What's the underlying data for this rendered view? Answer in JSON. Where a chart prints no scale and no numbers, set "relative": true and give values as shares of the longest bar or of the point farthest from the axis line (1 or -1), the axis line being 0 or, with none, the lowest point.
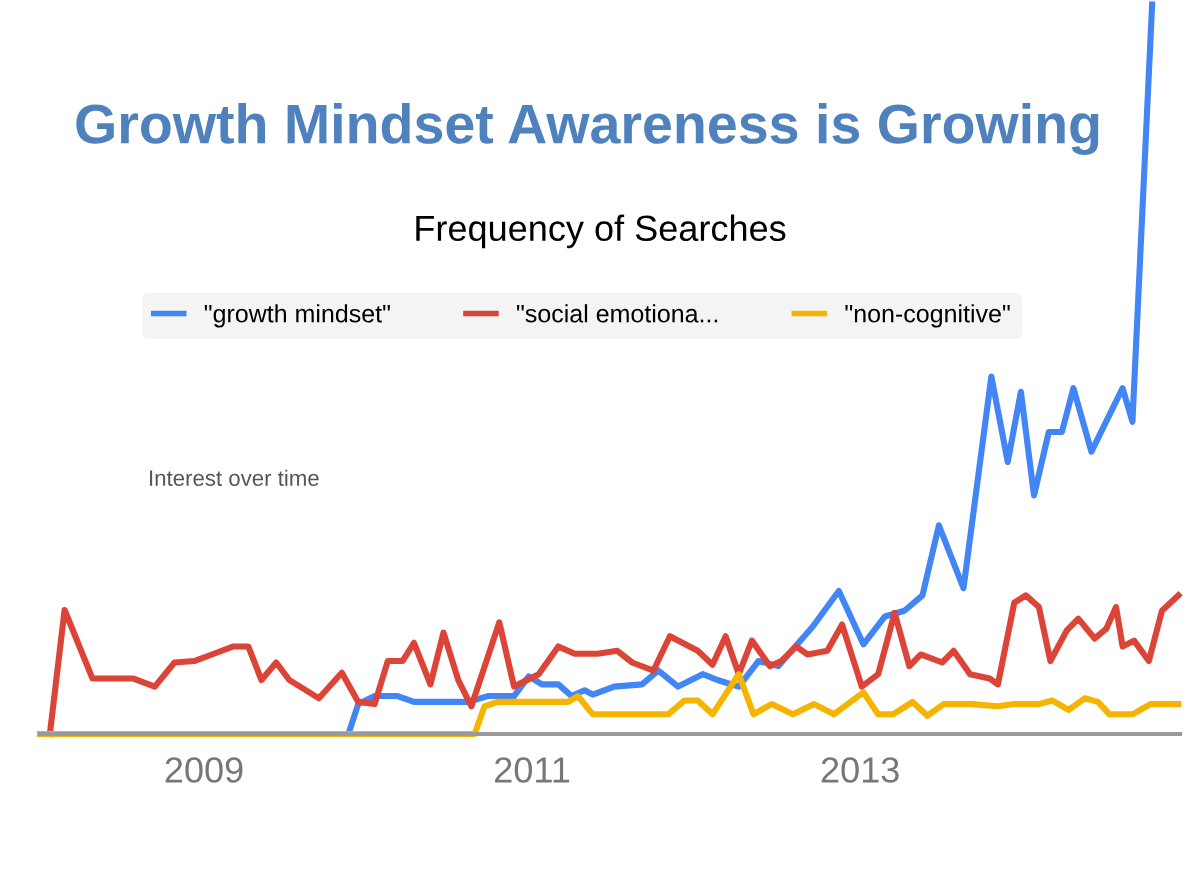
{
  "chart_data": {
    "type": "line",
    "title": "Growth Mindset Awareness is Growing",
    "subtitle": "Frequency of Searches",
    "annotations": [
      "Interest over time"
    ],
    "relative": true,
    "legend": "top left",
    "marker": "none",
    "line_style": "solid",
    "xlim": [
      2008.0,
      2014.95
    ],
    "xticks": [
      2009,
      2011,
      2013
    ],
    "series": [
      {
        "name": "\"growth mindset\"",
        "color": "#4285f4",
        "x": [
          2008.0,
          2009.88,
          2009.94,
          2010.04,
          2010.18,
          2010.28,
          2010.61,
          2010.73,
          2010.89,
          2010.98,
          2011.06,
          2011.16,
          2011.24,
          2011.32,
          2011.37,
          2011.5,
          2011.67,
          2011.77,
          2011.89,
          2012.04,
          2012.13,
          2012.26,
          2012.38,
          2012.5,
          2012.71,
          2012.87,
          2013.02,
          2013.15,
          2013.27,
          2013.38,
          2013.48,
          2013.63,
          2013.8,
          2013.9,
          2013.98,
          2014.06,
          2014.15,
          2014.23,
          2014.3,
          2014.41,
          2014.6,
          2014.66,
          2014.78
        ],
        "values": [
          0,
          0,
          0.041,
          0.052,
          0.052,
          0.044,
          0.044,
          0.052,
          0.052,
          0.079,
          0.068,
          0.068,
          0.052,
          0.06,
          0.054,
          0.065,
          0.068,
          0.087,
          0.065,
          0.082,
          0.074,
          0.065,
          0.1,
          0.093,
          0.147,
          0.196,
          0.123,
          0.161,
          0.169,
          0.19,
          0.286,
          0.2,
          0.49,
          0.373,
          0.469,
          0.327,
          0.414,
          0.414,
          0.474,
          0.387,
          0.474,
          0.428,
          1.0
        ]
      },
      {
        "name": "\"social emotiona...",
        "color": "#db4437",
        "x": [
          2008.06,
          2008.15,
          2008.32,
          2008.57,
          2008.7,
          2008.82,
          2008.94,
          2009.06,
          2009.18,
          2009.27,
          2009.35,
          2009.44,
          2009.52,
          2009.7,
          2009.84,
          2009.94,
          2010.04,
          2010.12,
          2010.21,
          2010.28,
          2010.38,
          2010.46,
          2010.55,
          2010.63,
          2010.8,
          2010.89,
          2011.04,
          2011.16,
          2011.26,
          2011.4,
          2011.52,
          2011.61,
          2011.74,
          2011.84,
          2012.01,
          2012.1,
          2012.18,
          2012.26,
          2012.34,
          2012.45,
          2012.52,
          2012.61,
          2012.68,
          2012.8,
          2012.89,
          2013.01,
          2013.11,
          2013.21,
          2013.3,
          2013.37,
          2013.5,
          2013.57,
          2013.67,
          2013.79,
          2013.84,
          2013.94,
          2014.01,
          2014.09,
          2014.16,
          2014.26,
          2014.33,
          2014.43,
          2014.5,
          2014.56,
          2014.6,
          2014.67,
          2014.76,
          2014.84,
          2014.94
        ],
        "values": [
          0,
          0.17,
          0.076,
          0.076,
          0.065,
          0.098,
          0.1,
          0.11,
          0.12,
          0.12,
          0.074,
          0.098,
          0.074,
          0.049,
          0.084,
          0.044,
          0.041,
          0.1,
          0.1,
          0.125,
          0.068,
          0.139,
          0.074,
          0.038,
          0.153,
          0.065,
          0.082,
          0.12,
          0.11,
          0.11,
          0.114,
          0.098,
          0.087,
          0.134,
          0.114,
          0.095,
          0.134,
          0.082,
          0.128,
          0.093,
          0.1,
          0.12,
          0.109,
          0.114,
          0.15,
          0.065,
          0.082,
          0.166,
          0.093,
          0.109,
          0.098,
          0.114,
          0.082,
          0.076,
          0.068,
          0.18,
          0.19,
          0.174,
          0.1,
          0.142,
          0.158,
          0.131,
          0.144,
          0.174,
          0.12,
          0.128,
          0.1,
          0.169,
          0.19
        ]
      },
      {
        "name": "\"non-cognitive\"",
        "color": "#f4b400",
        "x": [
          2008.0,
          2010.65,
          2010.71,
          2010.79,
          2011.22,
          2011.28,
          2011.37,
          2011.52,
          2011.83,
          2011.93,
          2012.01,
          2012.1,
          2012.26,
          2012.35,
          2012.46,
          2012.59,
          2012.72,
          2012.84,
          2013.02,
          2013.11,
          2013.2,
          2013.32,
          2013.41,
          2013.51,
          2013.68,
          2013.84,
          2013.94,
          2014.09,
          2014.17,
          2014.27,
          2014.37,
          2014.45,
          2014.52,
          2014.66,
          2014.77,
          2014.94
        ],
        "values": [
          0,
          0,
          0.038,
          0.044,
          0.044,
          0.052,
          0.027,
          0.027,
          0.027,
          0.046,
          0.046,
          0.027,
          0.082,
          0.027,
          0.041,
          0.027,
          0.041,
          0.027,
          0.057,
          0.027,
          0.027,
          0.044,
          0.025,
          0.041,
          0.041,
          0.038,
          0.041,
          0.041,
          0.046,
          0.033,
          0.049,
          0.044,
          0.027,
          0.027,
          0.041,
          0.041
        ]
      }
    ]
  }
}
